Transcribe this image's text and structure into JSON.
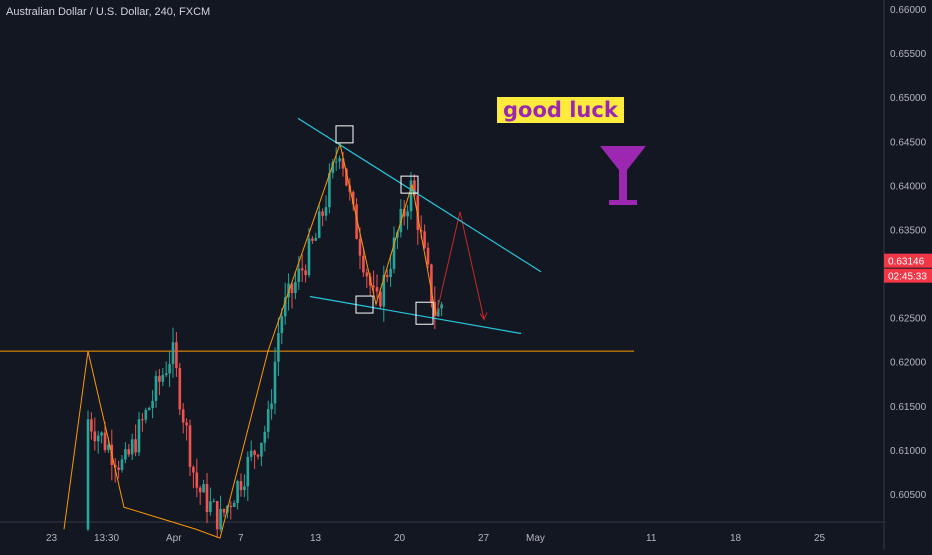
{
  "chart_data": {
    "type": "candlestick",
    "title": "Australian Dollar / U.S. Dollar, 240, FXCM",
    "y_ticks": [
      "0.66000",
      "0.65500",
      "0.65000",
      "0.64500",
      "0.64000",
      "0.63500",
      "0.63000",
      "0.62500",
      "0.62000",
      "0.61500",
      "0.61000",
      "0.60500"
    ],
    "x_ticks": [
      "23",
      "13:30",
      "Apr",
      "7",
      "13",
      "20",
      "27",
      "May",
      "11",
      "18",
      "25"
    ],
    "ylim": [
      0.6016,
      0.6617
    ],
    "last_price": "0.63146",
    "countdown": "02:45:33",
    "annotation": "good luck",
    "horizontal_level": 0.6212,
    "trendlines": [
      {
        "name": "upper",
        "from": {
          "t": "Apr 13",
          "v": 0.6476
        },
        "to": {
          "t": "Apr 30",
          "v": 0.6302
        },
        "color": "#26c6da"
      },
      {
        "name": "lower",
        "from": {
          "t": "Apr 13",
          "v": 0.6275
        },
        "to": {
          "t": "Apr 29",
          "v": 0.623
        },
        "color": "#26c6da"
      }
    ],
    "pattern_points": [
      "Mar 24 low",
      "Mar 26 high",
      "Mar 28 low",
      "Apr 1 high",
      "Apr 3 low",
      "Apr 8 high",
      "Apr 15 peak",
      "Apr 18 low",
      "Apr 21 high",
      "Apr 23 low",
      "Apr 24 projection",
      "Apr 25 target"
    ],
    "markers_at": [
      0.6447,
      0.6401,
      0.626,
      0.625
    ],
    "colors": {
      "up": "#26a69a",
      "down": "#ef5350",
      "background": "#131722",
      "price_tag": "#f23645",
      "trend": "#26c6da",
      "pattern": "#ff9800",
      "projection": "#c62828",
      "accent": "#ffeb3b",
      "cocktail": "#9c27b0"
    }
  }
}
